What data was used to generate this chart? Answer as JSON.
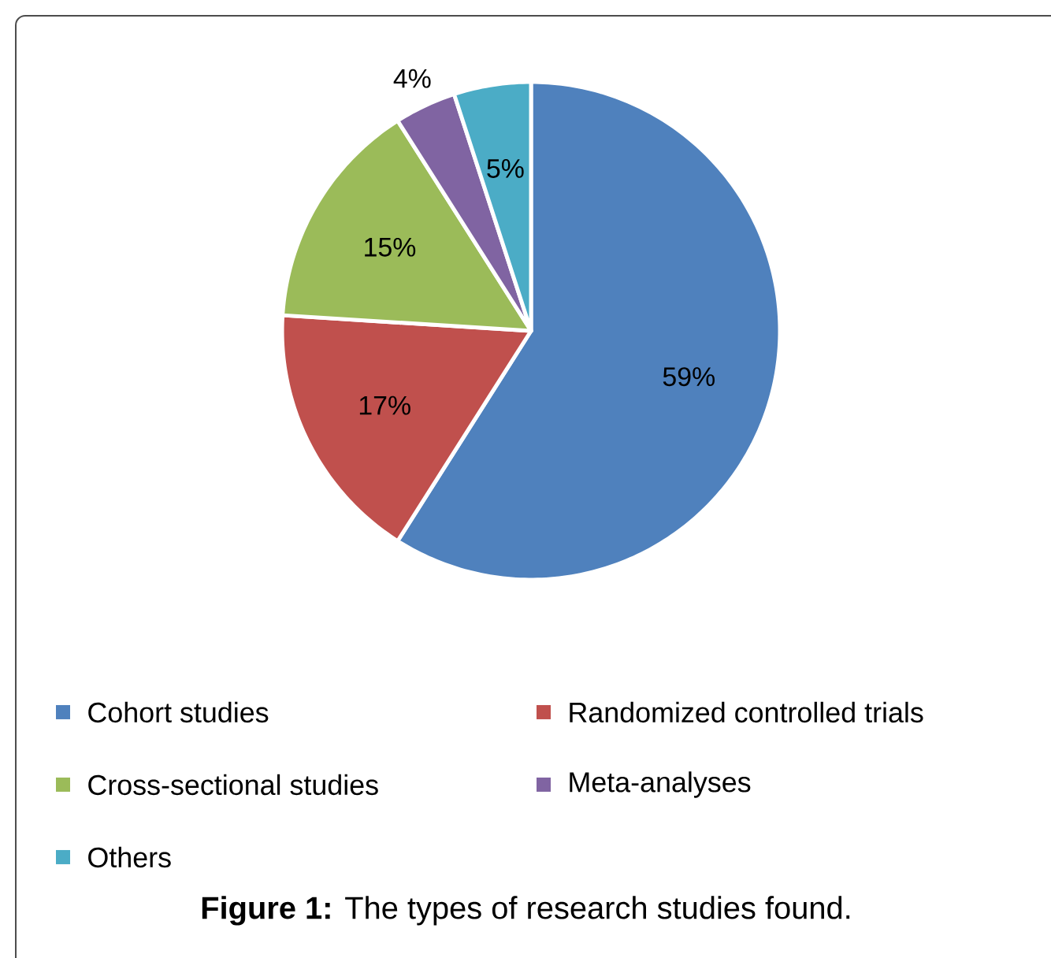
{
  "chart_data": {
    "type": "pie",
    "title": "**Figure 1:** The types of research studies found.",
    "categories": [
      "Cohort studies",
      "Randomized controlled trials",
      "Cross-sectional studies",
      "Meta-analyses",
      "Others"
    ],
    "values": [
      59,
      17,
      15,
      4,
      5
    ],
    "colors": [
      "#4f81bd",
      "#c0504d",
      "#9bbb59",
      "#8064a2",
      "#4bacc6"
    ],
    "value_labels": [
      "59%",
      "17%",
      "15%",
      "4%",
      "5%"
    ],
    "legend": "bottom"
  }
}
